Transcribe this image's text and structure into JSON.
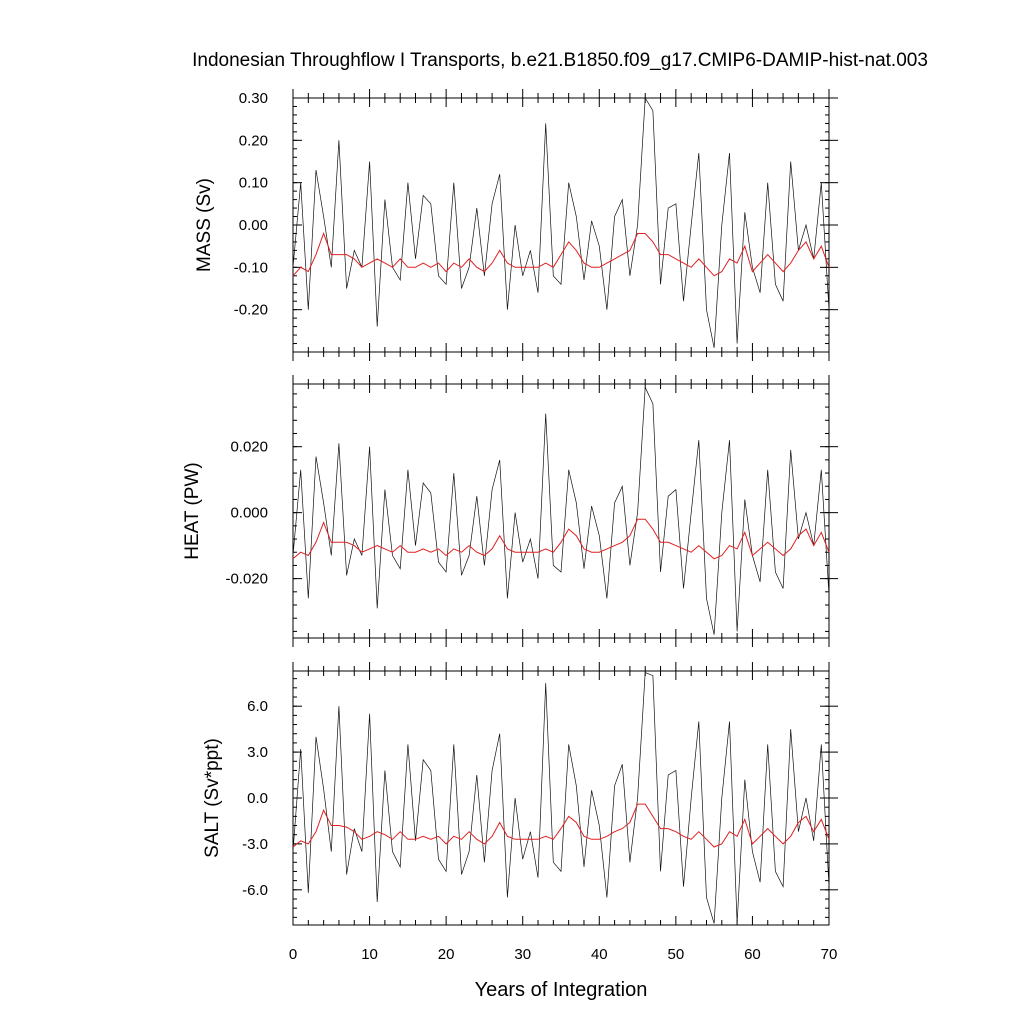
{
  "title": "Indonesian Throughflow I Transports, b.e21.B1850.f09_g17.CMIP6-DAMIP-hist-nat.003",
  "chart_data": [
    {
      "type": "line",
      "ylabel": "MASS (Sv)",
      "xlabel": "",
      "xlim": [
        0,
        70
      ],
      "ylim": [
        -0.3,
        0.3
      ],
      "yticks": [
        -0.2,
        -0.1,
        0.0,
        0.1,
        0.2,
        0.3
      ],
      "ytick_labels": [
        "-0.20",
        "-0.10",
        "0.00",
        "0.10",
        "0.20",
        "0.30"
      ],
      "xticks": [
        0,
        10,
        20,
        30,
        40,
        50,
        60,
        70
      ],
      "grid": false,
      "series": [
        {
          "color": "#111111",
          "x": [
            0,
            1,
            2,
            3,
            4,
            5,
            6,
            7,
            8,
            9,
            10,
            11,
            12,
            13,
            14,
            15,
            16,
            17,
            18,
            19,
            20,
            21,
            22,
            23,
            24,
            25,
            26,
            27,
            28,
            29,
            30,
            31,
            32,
            33,
            34,
            35,
            36,
            37,
            38,
            39,
            40,
            41,
            42,
            43,
            44,
            45,
            46,
            47,
            48,
            49,
            50,
            51,
            52,
            53,
            54,
            55,
            56,
            57,
            58,
            59,
            60,
            61,
            62,
            63,
            64,
            65,
            66,
            67,
            68,
            69,
            70
          ],
          "y": [
            -0.1,
            0.1,
            -0.2,
            0.13,
            0.02,
            -0.1,
            0.2,
            -0.15,
            -0.06,
            -0.1,
            0.15,
            -0.24,
            0.06,
            -0.1,
            -0.13,
            0.1,
            -0.08,
            0.07,
            0.05,
            -0.12,
            -0.14,
            0.1,
            -0.15,
            -0.1,
            0.04,
            -0.12,
            0.05,
            0.12,
            -0.2,
            0.0,
            -0.12,
            -0.06,
            -0.16,
            0.24,
            -0.12,
            -0.14,
            0.1,
            0.02,
            -0.13,
            0.01,
            -0.05,
            -0.2,
            0.02,
            0.06,
            -0.12,
            0.0,
            0.3,
            0.27,
            -0.14,
            0.04,
            0.05,
            -0.18,
            0.0,
            0.17,
            -0.2,
            -0.29,
            0.0,
            0.17,
            -0.28,
            0.03,
            -0.1,
            -0.16,
            0.1,
            -0.14,
            -0.18,
            0.15,
            -0.06,
            0.0,
            -0.08,
            0.1,
            -0.2
          ]
        },
        {
          "color": "#e02020",
          "x": [
            0,
            1,
            2,
            3,
            4,
            5,
            6,
            7,
            8,
            9,
            10,
            11,
            12,
            13,
            14,
            15,
            16,
            17,
            18,
            19,
            20,
            21,
            22,
            23,
            24,
            25,
            26,
            27,
            28,
            29,
            30,
            31,
            32,
            33,
            34,
            35,
            36,
            37,
            38,
            39,
            40,
            41,
            42,
            43,
            44,
            45,
            46,
            47,
            48,
            49,
            50,
            51,
            52,
            53,
            54,
            55,
            56,
            57,
            58,
            59,
            60,
            61,
            62,
            63,
            64,
            65,
            66,
            67,
            68,
            69,
            70
          ],
          "y": [
            -0.12,
            -0.1,
            -0.11,
            -0.07,
            -0.02,
            -0.07,
            -0.07,
            -0.07,
            -0.08,
            -0.1,
            -0.09,
            -0.08,
            -0.09,
            -0.1,
            -0.08,
            -0.1,
            -0.1,
            -0.09,
            -0.1,
            -0.09,
            -0.11,
            -0.09,
            -0.1,
            -0.08,
            -0.1,
            -0.11,
            -0.09,
            -0.06,
            -0.09,
            -0.1,
            -0.1,
            -0.1,
            -0.1,
            -0.09,
            -0.1,
            -0.07,
            -0.04,
            -0.06,
            -0.09,
            -0.1,
            -0.1,
            -0.09,
            -0.08,
            -0.07,
            -0.06,
            -0.02,
            -0.02,
            -0.04,
            -0.07,
            -0.07,
            -0.08,
            -0.09,
            -0.1,
            -0.08,
            -0.1,
            -0.12,
            -0.11,
            -0.08,
            -0.09,
            -0.05,
            -0.11,
            -0.09,
            -0.07,
            -0.09,
            -0.11,
            -0.09,
            -0.06,
            -0.04,
            -0.08,
            -0.05,
            -0.1
          ]
        }
      ]
    },
    {
      "type": "line",
      "ylabel": "HEAT (PW)",
      "xlabel": "",
      "xlim": [
        0,
        70
      ],
      "ylim": [
        -0.038,
        0.039
      ],
      "yticks": [
        -0.02,
        0.0,
        0.02
      ],
      "ytick_labels": [
        "-0.020",
        "0.000",
        "0.020"
      ],
      "xticks": [
        0,
        10,
        20,
        30,
        40,
        50,
        60,
        70
      ],
      "grid": false,
      "series": [
        {
          "color": "#111111",
          "x": [
            0,
            1,
            2,
            3,
            4,
            5,
            6,
            7,
            8,
            9,
            10,
            11,
            12,
            13,
            14,
            15,
            16,
            17,
            18,
            19,
            20,
            21,
            22,
            23,
            24,
            25,
            26,
            27,
            28,
            29,
            30,
            31,
            32,
            33,
            34,
            35,
            36,
            37,
            38,
            39,
            40,
            41,
            42,
            43,
            44,
            45,
            46,
            47,
            48,
            49,
            50,
            51,
            52,
            53,
            54,
            55,
            56,
            57,
            58,
            59,
            60,
            61,
            62,
            63,
            64,
            65,
            66,
            67,
            68,
            69,
            70
          ],
          "y": [
            -0.013,
            0.013,
            -0.026,
            0.017,
            0.003,
            -0.013,
            0.021,
            -0.019,
            -0.008,
            -0.013,
            0.02,
            -0.029,
            0.007,
            -0.013,
            -0.017,
            0.013,
            -0.01,
            0.009,
            0.006,
            -0.015,
            -0.018,
            0.012,
            -0.019,
            -0.013,
            0.005,
            -0.016,
            0.007,
            0.016,
            -0.026,
            0.0,
            -0.015,
            -0.008,
            -0.02,
            0.03,
            -0.016,
            -0.018,
            0.013,
            0.003,
            -0.017,
            0.002,
            -0.007,
            -0.026,
            0.003,
            0.008,
            -0.016,
            0.0,
            0.038,
            0.033,
            -0.018,
            0.005,
            0.007,
            -0.023,
            0.0,
            0.022,
            -0.026,
            -0.037,
            0.0,
            0.022,
            -0.036,
            0.004,
            -0.013,
            -0.021,
            0.013,
            -0.018,
            -0.023,
            0.019,
            -0.008,
            0.0,
            -0.01,
            0.013,
            -0.025
          ]
        },
        {
          "color": "#e02020",
          "x": [
            0,
            1,
            2,
            3,
            4,
            5,
            6,
            7,
            8,
            9,
            10,
            11,
            12,
            13,
            14,
            15,
            16,
            17,
            18,
            19,
            20,
            21,
            22,
            23,
            24,
            25,
            26,
            27,
            28,
            29,
            30,
            31,
            32,
            33,
            34,
            35,
            36,
            37,
            38,
            39,
            40,
            41,
            42,
            43,
            44,
            45,
            46,
            47,
            48,
            49,
            50,
            51,
            52,
            53,
            54,
            55,
            56,
            57,
            58,
            59,
            60,
            61,
            62,
            63,
            64,
            65,
            66,
            67,
            68,
            69,
            70
          ],
          "y": [
            -0.014,
            -0.012,
            -0.013,
            -0.009,
            -0.003,
            -0.009,
            -0.009,
            -0.009,
            -0.01,
            -0.012,
            -0.011,
            -0.01,
            -0.011,
            -0.012,
            -0.01,
            -0.012,
            -0.012,
            -0.011,
            -0.012,
            -0.011,
            -0.013,
            -0.011,
            -0.012,
            -0.01,
            -0.012,
            -0.013,
            -0.011,
            -0.007,
            -0.011,
            -0.012,
            -0.012,
            -0.012,
            -0.012,
            -0.011,
            -0.012,
            -0.009,
            -0.005,
            -0.007,
            -0.011,
            -0.012,
            -0.012,
            -0.011,
            -0.01,
            -0.009,
            -0.007,
            -0.002,
            -0.002,
            -0.005,
            -0.009,
            -0.009,
            -0.01,
            -0.011,
            -0.012,
            -0.01,
            -0.012,
            -0.014,
            -0.013,
            -0.01,
            -0.011,
            -0.006,
            -0.013,
            -0.011,
            -0.009,
            -0.011,
            -0.013,
            -0.011,
            -0.007,
            -0.005,
            -0.01,
            -0.006,
            -0.012
          ]
        }
      ]
    },
    {
      "type": "line",
      "ylabel": "SALT (Sv*ppt)",
      "xlabel": "Years of Integration",
      "xlim": [
        0,
        70
      ],
      "ylim": [
        -8.3,
        8.3
      ],
      "yticks": [
        -6.0,
        -3.0,
        0.0,
        3.0,
        6.0
      ],
      "ytick_labels": [
        "-6.0",
        "-3.0",
        "0.0",
        "3.0",
        "6.0"
      ],
      "xticks": [
        0,
        10,
        20,
        30,
        40,
        50,
        60,
        70
      ],
      "xtick_labels": [
        "0",
        "10",
        "20",
        "30",
        "40",
        "50",
        "60",
        "70"
      ],
      "grid": false,
      "series": [
        {
          "color": "#111111",
          "x": [
            0,
            1,
            2,
            3,
            4,
            5,
            6,
            7,
            8,
            9,
            10,
            11,
            12,
            13,
            14,
            15,
            16,
            17,
            18,
            19,
            20,
            21,
            22,
            23,
            24,
            25,
            26,
            27,
            28,
            29,
            30,
            31,
            32,
            33,
            34,
            35,
            36,
            37,
            38,
            39,
            40,
            41,
            42,
            43,
            44,
            45,
            46,
            47,
            48,
            49,
            50,
            51,
            52,
            53,
            54,
            55,
            56,
            57,
            58,
            59,
            60,
            61,
            62,
            63,
            64,
            65,
            66,
            67,
            68,
            69,
            70
          ],
          "y": [
            -3.5,
            3.2,
            -6.2,
            4.0,
            0.6,
            -3.5,
            6.0,
            -5.0,
            -2.0,
            -3.5,
            5.5,
            -6.8,
            1.8,
            -3.5,
            -4.5,
            3.5,
            -2.8,
            2.5,
            1.8,
            -4.0,
            -4.8,
            3.5,
            -5.0,
            -3.5,
            1.5,
            -4.2,
            1.8,
            4.2,
            -6.5,
            0.0,
            -4.0,
            -2.2,
            -5.2,
            7.5,
            -4.2,
            -4.8,
            3.5,
            0.8,
            -4.5,
            0.5,
            -1.8,
            -6.5,
            0.8,
            2.2,
            -4.2,
            0.0,
            8.2,
            8.0,
            -4.8,
            1.5,
            1.8,
            -5.8,
            0.0,
            5.0,
            -6.5,
            -8.2,
            0.0,
            5.0,
            -8.2,
            1.2,
            -3.5,
            -5.5,
            3.5,
            -4.8,
            -5.8,
            4.5,
            -2.2,
            0.0,
            -2.8,
            3.5,
            -5.8
          ]
        },
        {
          "color": "#e02020",
          "x": [
            0,
            1,
            2,
            3,
            4,
            5,
            6,
            7,
            8,
            9,
            10,
            11,
            12,
            13,
            14,
            15,
            16,
            17,
            18,
            19,
            20,
            21,
            22,
            23,
            24,
            25,
            26,
            27,
            28,
            29,
            30,
            31,
            32,
            33,
            34,
            35,
            36,
            37,
            38,
            39,
            40,
            41,
            42,
            43,
            44,
            45,
            46,
            47,
            48,
            49,
            50,
            51,
            52,
            53,
            54,
            55,
            56,
            57,
            58,
            59,
            60,
            61,
            62,
            63,
            64,
            65,
            66,
            67,
            68,
            69,
            70
          ],
          "y": [
            -3.2,
            -2.8,
            -3.0,
            -2.2,
            -0.8,
            -1.8,
            -1.8,
            -1.9,
            -2.2,
            -2.7,
            -2.5,
            -2.2,
            -2.4,
            -2.7,
            -2.2,
            -2.7,
            -2.7,
            -2.5,
            -2.7,
            -2.5,
            -3.0,
            -2.5,
            -2.7,
            -2.2,
            -2.7,
            -3.0,
            -2.5,
            -1.6,
            -2.5,
            -2.7,
            -2.7,
            -2.7,
            -2.7,
            -2.5,
            -2.7,
            -2.0,
            -1.2,
            -1.6,
            -2.5,
            -2.7,
            -2.7,
            -2.5,
            -2.2,
            -2.0,
            -1.6,
            -0.4,
            -0.4,
            -1.2,
            -2.0,
            -2.0,
            -2.2,
            -2.5,
            -2.7,
            -2.2,
            -2.7,
            -3.2,
            -3.0,
            -2.2,
            -2.5,
            -1.4,
            -3.0,
            -2.5,
            -2.0,
            -2.5,
            -3.0,
            -2.5,
            -1.6,
            -1.2,
            -2.2,
            -1.4,
            -2.7
          ]
        }
      ]
    }
  ]
}
